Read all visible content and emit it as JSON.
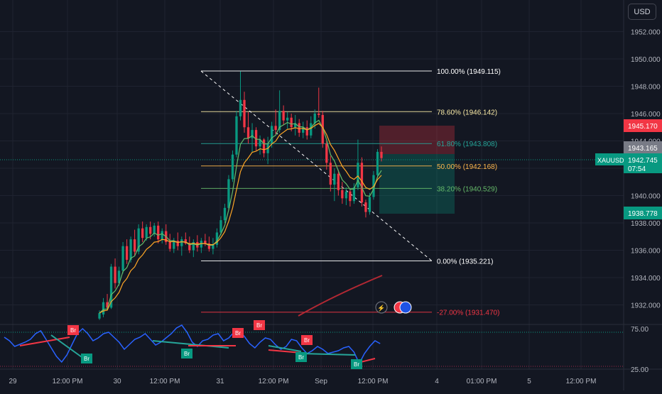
{
  "currency": "USD",
  "symbol": "XAUUSD",
  "chart_data": {
    "type": "candlestick",
    "price_scale": {
      "ticks": [
        "1952.000",
        "1950.000",
        "1948.000",
        "1946.000",
        "1944.000",
        "1942.000",
        "1940.000",
        "1938.000",
        "1936.000",
        "1934.000",
        "1932.000"
      ],
      "ylim": [
        1930.9,
        1953.4
      ]
    },
    "time_scale": {
      "labels": [
        "29",
        "12:00 PM",
        "30",
        "12:00 PM",
        "31",
        "12:00 PM",
        "Sep",
        "12:00 PM",
        "4",
        "01:00 PM",
        "5",
        "12:00 PM"
      ]
    },
    "price_tags": {
      "target": {
        "value": "1945.170",
        "color": "#f23645"
      },
      "last": {
        "value": "1943.165",
        "color": "#787b86"
      },
      "current": {
        "value": "1942.745",
        "countdown": "07:54",
        "color": "#089981"
      },
      "stop": {
        "value": "1938.778",
        "color": "#089981"
      }
    },
    "fib_levels": [
      {
        "label": "100.00% (1949.115)",
        "price": 1949.115,
        "color": "#ffffff"
      },
      {
        "label": "78.60% (1946.142)",
        "price": 1946.142,
        "color": "#f7e8a4"
      },
      {
        "label": "61.80% (1943.808)",
        "price": 1943.808,
        "color": "#26a69a"
      },
      {
        "label": "50.00% (1942.168)",
        "price": 1942.168,
        "color": "#ffb74d"
      },
      {
        "label": "38.20% (1940.529)",
        "price": 1940.529,
        "color": "#66bb6a"
      },
      {
        "label": "0.00% (1935.221)",
        "price": 1935.221,
        "color": "#ffffff"
      },
      {
        "label": "-27.00% (1931.470)",
        "price": 1931.47,
        "color": "#f23645"
      }
    ],
    "candles": [
      [
        1931.0,
        1931.6,
        1930.9,
        1931.4
      ],
      [
        1931.3,
        1932.5,
        1931.1,
        1932.2
      ],
      [
        1932.2,
        1932.8,
        1931.6,
        1931.8
      ],
      [
        1931.8,
        1935.0,
        1931.7,
        1934.8
      ],
      [
        1934.8,
        1935.4,
        1933.2,
        1933.6
      ],
      [
        1933.6,
        1934.8,
        1933.4,
        1934.5
      ],
      [
        1934.5,
        1936.6,
        1934.3,
        1936.3
      ],
      [
        1936.3,
        1936.8,
        1935.0,
        1935.3
      ],
      [
        1935.3,
        1937.0,
        1935.1,
        1936.8
      ],
      [
        1936.8,
        1937.5,
        1935.6,
        1935.9
      ],
      [
        1935.9,
        1937.9,
        1935.7,
        1937.6
      ],
      [
        1937.6,
        1938.1,
        1936.6,
        1936.9
      ],
      [
        1936.9,
        1937.9,
        1936.7,
        1937.7
      ],
      [
        1937.7,
        1938.1,
        1936.8,
        1937.2
      ],
      [
        1937.2,
        1938.0,
        1937.0,
        1937.8
      ],
      [
        1937.8,
        1938.1,
        1936.5,
        1936.8
      ],
      [
        1936.8,
        1937.6,
        1936.5,
        1937.4
      ],
      [
        1937.4,
        1937.9,
        1936.4,
        1936.6
      ],
      [
        1936.6,
        1937.2,
        1935.9,
        1936.1
      ],
      [
        1936.1,
        1936.9,
        1935.8,
        1936.7
      ],
      [
        1936.7,
        1937.3,
        1936.0,
        1936.3
      ],
      [
        1936.3,
        1937.0,
        1935.6,
        1936.8
      ],
      [
        1936.8,
        1937.3,
        1936.4,
        1936.5
      ],
      [
        1936.5,
        1937.0,
        1935.8,
        1936.0
      ],
      [
        1936.0,
        1936.8,
        1935.5,
        1936.6
      ],
      [
        1936.6,
        1937.1,
        1935.9,
        1936.2
      ],
      [
        1936.2,
        1936.9,
        1935.8,
        1936.7
      ],
      [
        1936.7,
        1937.2,
        1936.3,
        1936.5
      ],
      [
        1936.5,
        1937.0,
        1935.9,
        1936.1
      ],
      [
        1936.1,
        1936.9,
        1935.7,
        1936.4
      ],
      [
        1936.4,
        1937.6,
        1936.2,
        1937.3
      ],
      [
        1937.3,
        1938.5,
        1937.1,
        1938.2
      ],
      [
        1938.2,
        1939.4,
        1938.0,
        1939.1
      ],
      [
        1939.1,
        1941.5,
        1938.9,
        1941.2
      ],
      [
        1941.2,
        1943.3,
        1941.0,
        1943.0
      ],
      [
        1943.0,
        1946.2,
        1942.8,
        1945.8
      ],
      [
        1945.8,
        1949.1,
        1945.5,
        1947.0
      ],
      [
        1947.0,
        1947.6,
        1944.6,
        1945.0
      ],
      [
        1945.0,
        1946.1,
        1943.8,
        1944.2
      ],
      [
        1944.2,
        1945.3,
        1943.2,
        1944.8
      ],
      [
        1944.8,
        1945.0,
        1943.3,
        1943.6
      ],
      [
        1943.6,
        1944.4,
        1943.0,
        1944.1
      ],
      [
        1944.1,
        1944.2,
        1942.8,
        1943.1
      ],
      [
        1943.1,
        1944.3,
        1942.3,
        1943.8
      ],
      [
        1943.8,
        1945.4,
        1943.5,
        1945.1
      ],
      [
        1945.1,
        1946.3,
        1944.5,
        1944.8
      ],
      [
        1944.8,
        1947.7,
        1944.6,
        1946.2
      ],
      [
        1946.2,
        1946.6,
        1945.2,
        1945.5
      ],
      [
        1945.5,
        1946.1,
        1944.9,
        1945.7
      ],
      [
        1945.7,
        1946.0,
        1944.7,
        1945.0
      ],
      [
        1945.0,
        1945.9,
        1944.4,
        1945.3
      ],
      [
        1945.3,
        1945.6,
        1944.3,
        1944.6
      ],
      [
        1944.6,
        1945.4,
        1944.2,
        1945.0
      ],
      [
        1945.0,
        1945.5,
        1944.1,
        1944.4
      ],
      [
        1944.4,
        1945.8,
        1944.2,
        1945.3
      ],
      [
        1945.3,
        1946.3,
        1944.9,
        1946.0
      ],
      [
        1946.0,
        1947.9,
        1945.7,
        1945.9
      ],
      [
        1945.9,
        1946.2,
        1943.5,
        1943.8
      ],
      [
        1943.8,
        1944.0,
        1941.9,
        1942.4
      ],
      [
        1942.4,
        1942.9,
        1940.3,
        1940.8
      ],
      [
        1940.8,
        1942.0,
        1939.6,
        1941.6
      ],
      [
        1941.6,
        1941.9,
        1940.0,
        1940.4
      ],
      [
        1940.4,
        1941.0,
        1939.4,
        1939.8
      ],
      [
        1939.8,
        1940.6,
        1939.3,
        1940.3
      ],
      [
        1940.3,
        1940.5,
        1939.2,
        1939.6
      ],
      [
        1939.6,
        1940.9,
        1939.4,
        1940.6
      ],
      [
        1940.6,
        1944.1,
        1940.4,
        1942.4
      ],
      [
        1942.4,
        1942.8,
        1939.2,
        1939.5
      ],
      [
        1939.5,
        1939.7,
        1938.4,
        1938.8
      ],
      [
        1938.8,
        1940.2,
        1938.6,
        1939.9
      ],
      [
        1939.9,
        1941.8,
        1939.7,
        1941.5
      ],
      [
        1941.5,
        1943.4,
        1941.3,
        1943.2
      ],
      [
        1943.2,
        1943.6,
        1942.5,
        1942.745
      ]
    ],
    "oscillator": {
      "ticks": [
        "75.00",
        "25.00"
      ],
      "labels": [
        "Br",
        "Br",
        "Br",
        "Br",
        "Br",
        "Br",
        "Br",
        "Br"
      ]
    }
  }
}
